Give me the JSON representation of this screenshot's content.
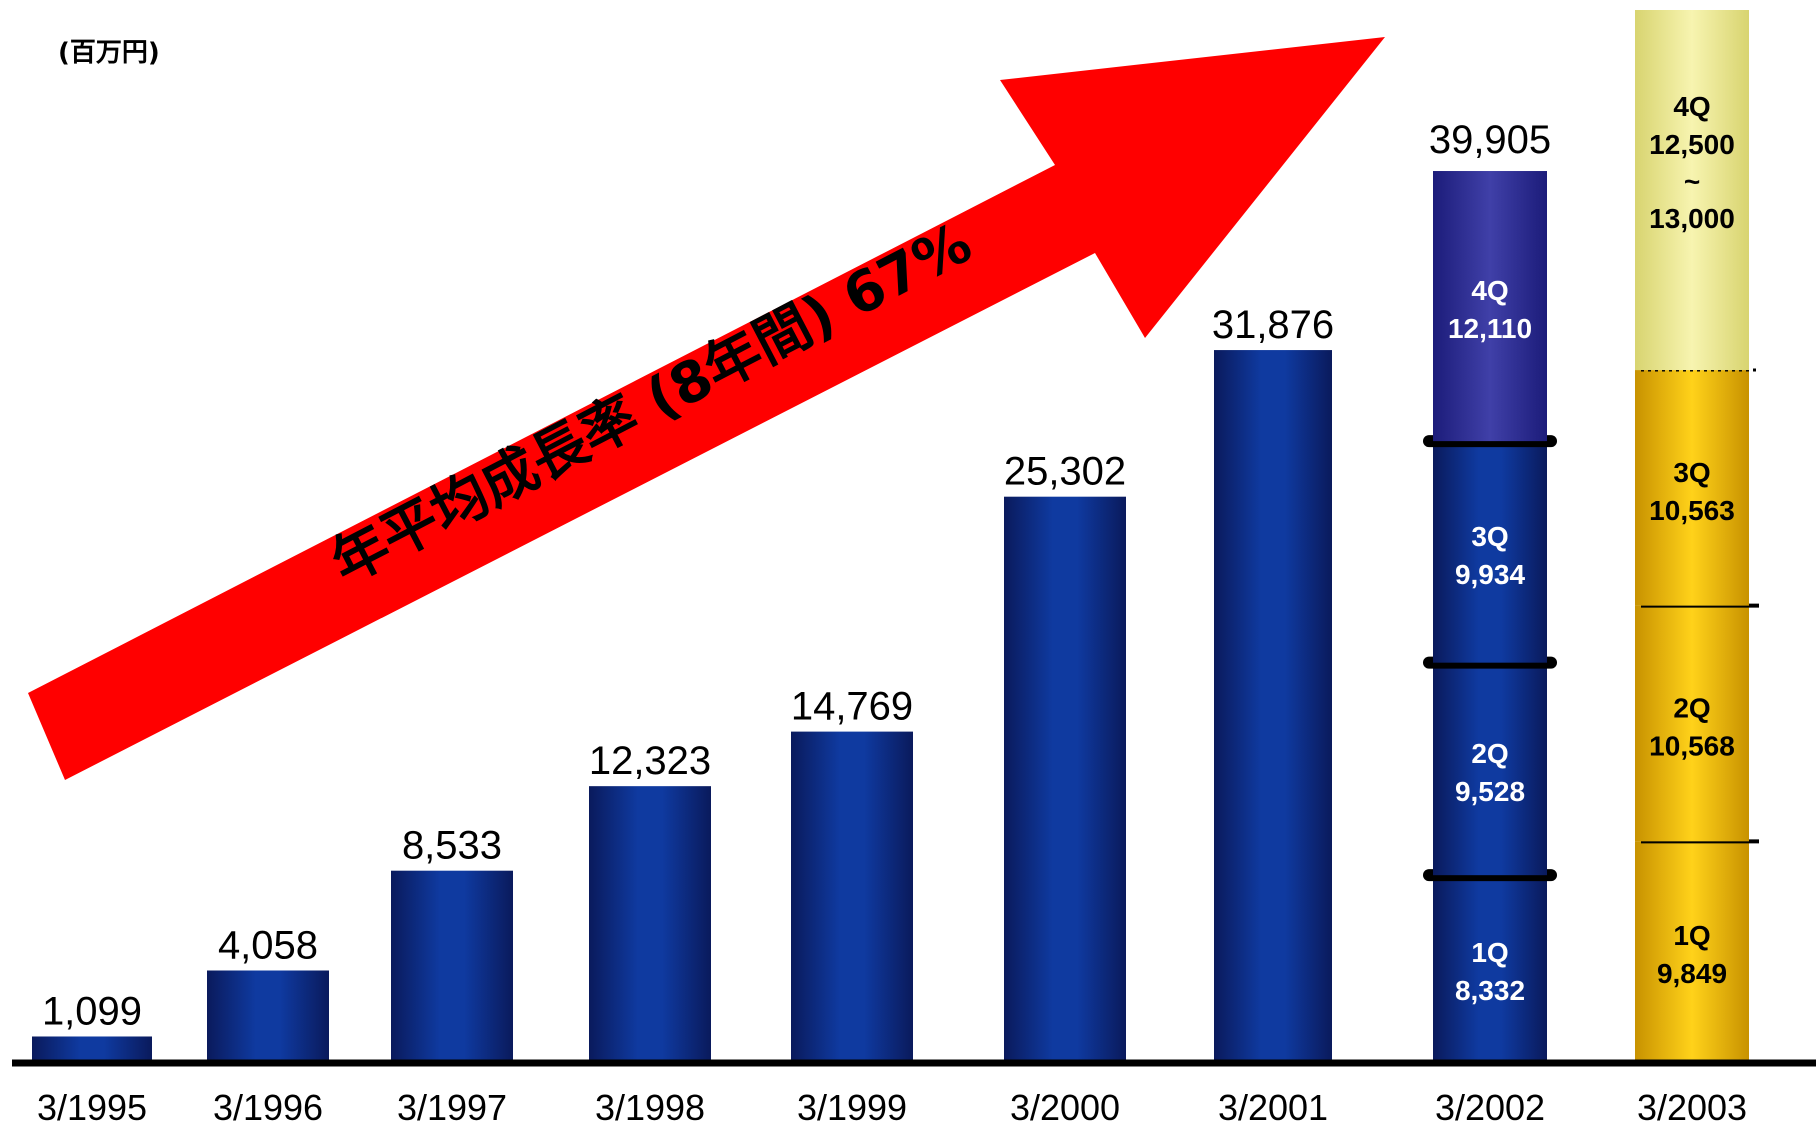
{
  "unit_label": "(百万円)",
  "growth_label": "年平均成長率 (8年間) 67%",
  "colors": {
    "bar_dark": "#0a1a5c",
    "bar_light": "#0f3aa0",
    "bar_4q_2002": "#3535a0",
    "bar_2003_gold": "#f2c200",
    "bar_2003_light": "#f2eea0",
    "arrow": "#ff0000",
    "axis": "#000000"
  },
  "chart_data": {
    "type": "bar",
    "categories": [
      "3/1995",
      "3/1996",
      "3/1997",
      "3/1998",
      "3/1999",
      "3/2000",
      "3/2001",
      "3/2002",
      "3/2003"
    ],
    "values": [
      1099,
      4058,
      8533,
      12323,
      14769,
      25302,
      31876,
      39905,
      null
    ],
    "value_labels": [
      "1,099",
      "4,058",
      "8,533",
      "12,323",
      "14,769",
      "25,302",
      "31,876",
      "39,905",
      ""
    ],
    "ylim": [
      0,
      45000
    ],
    "stacked": {
      "3/2002": [
        {
          "quarter": "1Q",
          "value": 8332,
          "label": "8,332"
        },
        {
          "quarter": "2Q",
          "value": 9528,
          "label": "9,528"
        },
        {
          "quarter": "3Q",
          "value": 9934,
          "label": "9,934"
        },
        {
          "quarter": "4Q",
          "value": 12110,
          "label": "12,110"
        }
      ],
      "3/2003": [
        {
          "quarter": "1Q",
          "value": 9849,
          "label": "9,849"
        },
        {
          "quarter": "2Q",
          "value": 10568,
          "label": "10,568"
        },
        {
          "quarter": "3Q",
          "value": 10563,
          "label": "10,563"
        },
        {
          "quarter": "4Q",
          "value": 12500,
          "value_max": 13000,
          "label_lines": [
            "12,500",
            "~",
            "13,000"
          ],
          "forecast": true
        }
      ]
    }
  }
}
